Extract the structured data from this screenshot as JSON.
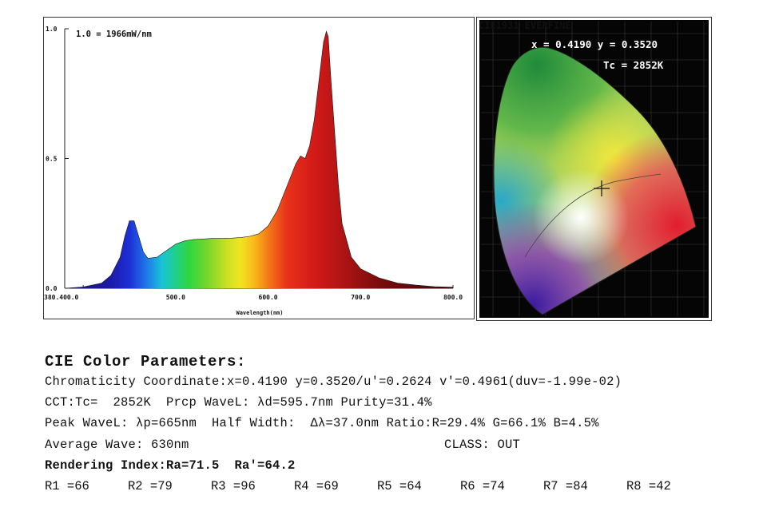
{
  "spectrum": {
    "annotation": "1.0 = 1966mW/nm",
    "xlabel": "Wavelength(nm)",
    "y_ticks": [
      "1.0",
      "0.5",
      "0.0"
    ],
    "x_ticks": [
      "380.400.0",
      "500.0",
      "600.0",
      "700.0",
      "800.0"
    ]
  },
  "cie": {
    "title": "CIE1931 EVERFINE",
    "coords": "x = 0.4190 y = 0.3520",
    "tc": "Tc = 2852K"
  },
  "params": {
    "heading": "CIE Color Parameters:",
    "line1": "Chromaticity Coordinate:x=0.4190 y=0.3520/u'=0.2624 v'=0.4961(duv=-1.99e-02)",
    "line2": "CCT:Tc=  2852K  Prcp WaveL: λd=595.7nm Purity=31.4%",
    "line3": "Peak WaveL: λp=665nm  Half Width:  Δλ=37.0nm Ratio:R=29.4% G=66.1% B=4.5%",
    "line4a": "Average Wave: 630nm",
    "line4b": "CLASS: OUT",
    "line5": "Rendering Index:Ra=71.5  Ra'=64.2",
    "ri": [
      "R1 =66",
      "R2 =79",
      "R3 =96",
      "R4 =69",
      "R5 =64",
      "R6 =74",
      "R7 =84",
      "R8 =42"
    ]
  },
  "chart_data": {
    "type": "area",
    "title": "",
    "xlabel": "Wavelength(nm)",
    "ylabel": "",
    "xlim": [
      380,
      800
    ],
    "ylim": [
      0,
      1.0
    ],
    "x": [
      380,
      400,
      420,
      430,
      440,
      445,
      450,
      455,
      460,
      465,
      470,
      480,
      490,
      500,
      510,
      520,
      530,
      540,
      550,
      560,
      570,
      580,
      590,
      600,
      610,
      620,
      630,
      635,
      640,
      645,
      650,
      655,
      660,
      663,
      665,
      668,
      672,
      676,
      680,
      690,
      700,
      720,
      740,
      760,
      780,
      800
    ],
    "series": [
      {
        "values": [
          0.0,
          0.005,
          0.02,
          0.05,
          0.12,
          0.2,
          0.26,
          0.26,
          0.2,
          0.14,
          0.115,
          0.12,
          0.145,
          0.17,
          0.183,
          0.188,
          0.19,
          0.192,
          0.192,
          0.193,
          0.195,
          0.2,
          0.21,
          0.24,
          0.3,
          0.39,
          0.48,
          0.51,
          0.5,
          0.55,
          0.65,
          0.8,
          0.95,
          0.99,
          0.97,
          0.8,
          0.6,
          0.4,
          0.25,
          0.12,
          0.075,
          0.04,
          0.02,
          0.012,
          0.006,
          0.004
        ]
      }
    ]
  }
}
